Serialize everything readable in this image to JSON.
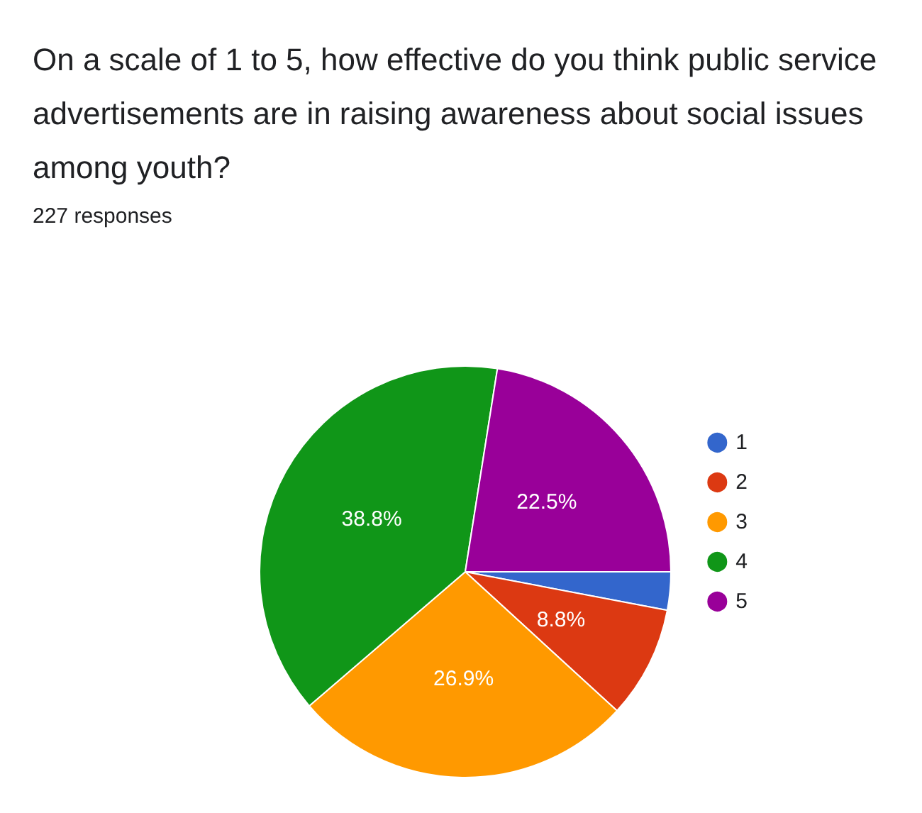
{
  "chart_data": {
    "type": "pie",
    "title": "On a scale of 1 to 5, how effective do you think public service advertisements are in raising awareness about social issues among youth?",
    "subtitle": "227 responses",
    "categories": [
      "1",
      "2",
      "3",
      "4",
      "5"
    ],
    "values": [
      3.0,
      8.8,
      26.9,
      38.8,
      22.5
    ],
    "colors": [
      "#3366cc",
      "#dc3912",
      "#ff9900",
      "#109618",
      "#990099"
    ],
    "value_labels": [
      null,
      "8.8%",
      "26.9%",
      "38.8%",
      "22.5%"
    ],
    "legend": "right"
  }
}
